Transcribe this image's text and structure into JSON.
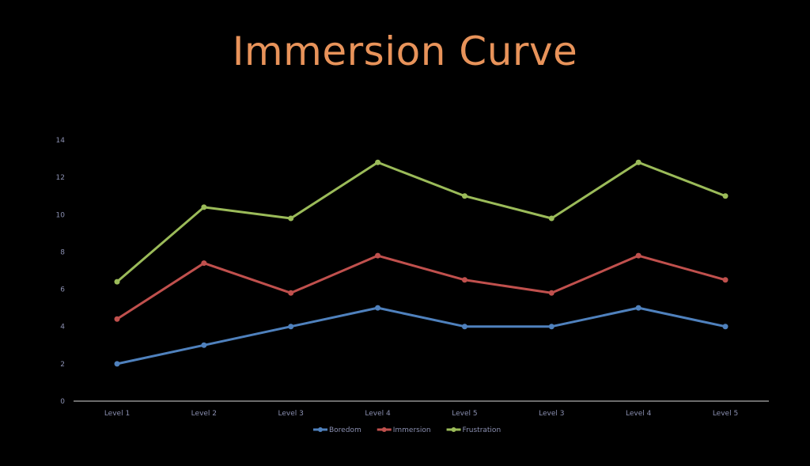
{
  "colors": {
    "background": "#000000",
    "title": "#e8935a",
    "axis_text": "#8a8fb0",
    "axis_line": "#d8d8d8"
  },
  "chart_data": {
    "type": "line",
    "title": "Immersion Curve",
    "xlabel": "",
    "ylabel": "",
    "categories": [
      "Level 1",
      "Level 2",
      "Level 3",
      "Level 4",
      "Level 5",
      "Level 3",
      "Level 4",
      "Level 5"
    ],
    "ylim": [
      0,
      14
    ],
    "yticks": [
      0,
      2,
      4,
      6,
      8,
      10,
      12,
      14
    ],
    "grid": false,
    "legend_position": "bottom",
    "series": [
      {
        "name": "Boredom",
        "color": "#4f81bd",
        "values": [
          2,
          3,
          4,
          5,
          4,
          4,
          5,
          4
        ]
      },
      {
        "name": "Immersion",
        "color": "#c0504d",
        "values": [
          4.4,
          7.4,
          5.8,
          7.8,
          6.5,
          5.8,
          7.8,
          6.5
        ]
      },
      {
        "name": "Frustration",
        "color": "#9bbb59",
        "values": [
          6.4,
          10.4,
          9.8,
          12.8,
          11,
          9.8,
          12.8,
          11
        ]
      }
    ]
  }
}
